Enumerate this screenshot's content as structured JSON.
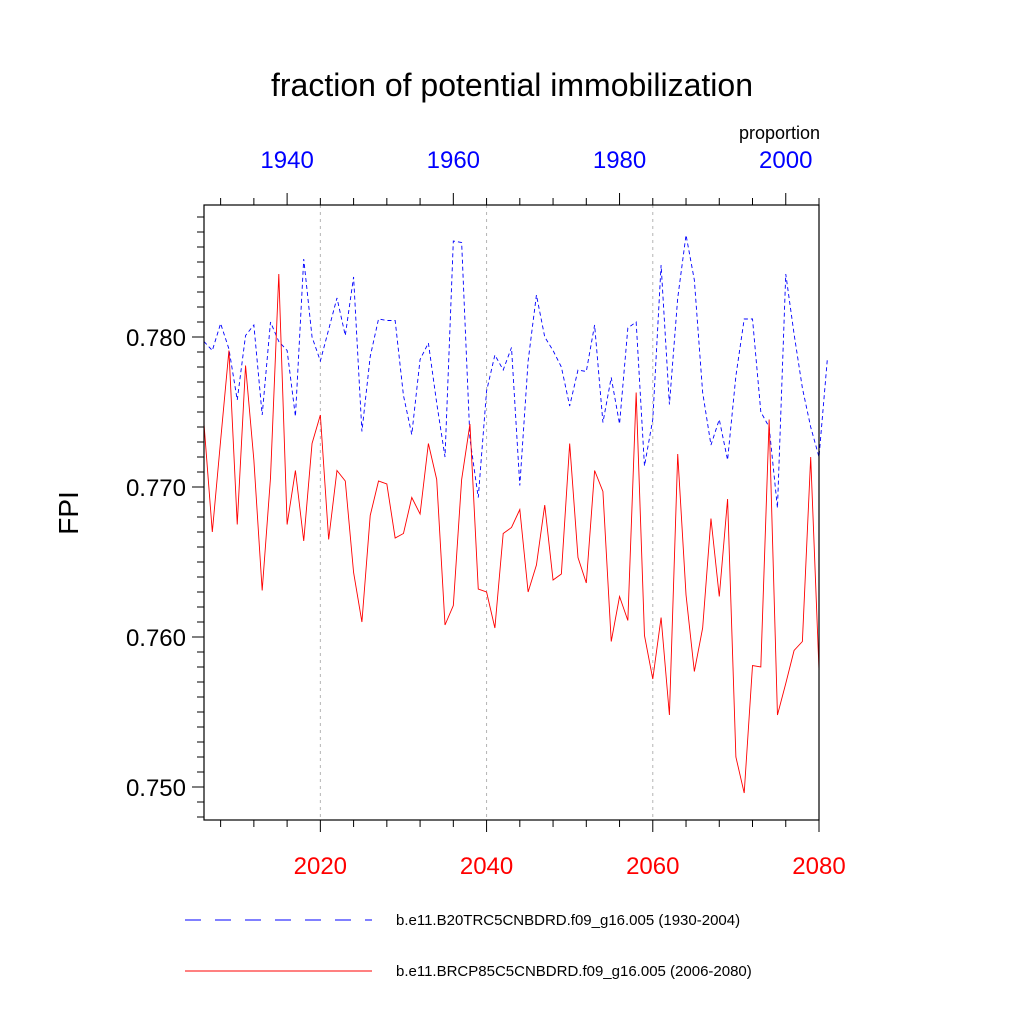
{
  "chart_data": {
    "type": "line",
    "title": "fraction of potential immobilization",
    "ylabel": "FPI",
    "units_label": "proportion",
    "ylim": [
      0.7478,
      0.7888
    ],
    "y_ticks": [
      {
        "value": 0.78,
        "label": "0.780"
      },
      {
        "value": 0.77,
        "label": "0.770"
      },
      {
        "value": 0.76,
        "label": "0.760"
      },
      {
        "value": 0.75,
        "label": "0.750"
      }
    ],
    "bottom_axis": {
      "range": [
        2006,
        2080
      ],
      "color": "#ff0000",
      "ticks": [
        {
          "value": 2020,
          "label": "2020"
        },
        {
          "value": 2040,
          "label": "2040"
        },
        {
          "value": 2060,
          "label": "2060"
        },
        {
          "value": 2080,
          "label": "2080"
        }
      ],
      "gridlines": [
        2020,
        2040,
        2060
      ]
    },
    "top_axis": {
      "range": [
        1930,
        2004
      ],
      "color": "#0000ff",
      "ticks": [
        {
          "value": 1940,
          "label": "1940"
        },
        {
          "value": 1960,
          "label": "1960"
        },
        {
          "value": 1980,
          "label": "1980"
        },
        {
          "value": 2000,
          "label": "2000"
        }
      ]
    },
    "series": [
      {
        "name": "b.e11.B20TRC5CNBDRD.f09_g16.005 (1930-2004)",
        "color": "#0000ff",
        "dash": "dashed",
        "x_start": 1930,
        "values": [
          0.7797,
          0.7791,
          0.7809,
          0.7792,
          0.7758,
          0.7801,
          0.7808,
          0.7748,
          0.781,
          0.7797,
          0.7791,
          0.7747,
          0.7852,
          0.78,
          0.7784,
          0.7805,
          0.7826,
          0.7801,
          0.784,
          0.7737,
          0.7787,
          0.7812,
          0.7811,
          0.7811,
          0.7761,
          0.7735,
          0.7785,
          0.7796,
          0.7756,
          0.772,
          0.7864,
          0.7863,
          0.7732,
          0.7693,
          0.7764,
          0.7788,
          0.7778,
          0.7793,
          0.7701,
          0.7784,
          0.7828,
          0.78,
          0.7791,
          0.778,
          0.7754,
          0.7778,
          0.7777,
          0.7808,
          0.7743,
          0.7773,
          0.7742,
          0.7806,
          0.781,
          0.7714,
          0.7745,
          0.7848,
          0.7755,
          0.7826,
          0.7868,
          0.7838,
          0.7763,
          0.7728,
          0.7745,
          0.7718,
          0.7774,
          0.7812,
          0.7812,
          0.775,
          0.774,
          0.7686,
          0.7842,
          0.7802,
          0.7766,
          0.774,
          0.772,
          0.7785
        ]
      },
      {
        "name": "b.e11.BRCP85C5CNBDRD.f09_g16.005 (2006-2080)",
        "color": "#ff0000",
        "dash": "solid",
        "x_start": 2006,
        "values": [
          0.7742,
          0.767,
          0.7731,
          0.7791,
          0.7675,
          0.7781,
          0.7718,
          0.7631,
          0.7706,
          0.7842,
          0.7675,
          0.7711,
          0.7664,
          0.7729,
          0.7748,
          0.7665,
          0.7711,
          0.7704,
          0.7643,
          0.761,
          0.7681,
          0.7704,
          0.7702,
          0.7666,
          0.7669,
          0.7693,
          0.7682,
          0.7729,
          0.7705,
          0.7608,
          0.7621,
          0.7705,
          0.7742,
          0.7632,
          0.763,
          0.7606,
          0.7669,
          0.7673,
          0.7685,
          0.763,
          0.7648,
          0.7688,
          0.7638,
          0.7642,
          0.7729,
          0.7653,
          0.7636,
          0.7711,
          0.7697,
          0.7597,
          0.7627,
          0.7611,
          0.7763,
          0.7601,
          0.7572,
          0.7613,
          0.7548,
          0.7722,
          0.7628,
          0.7577,
          0.7606,
          0.7679,
          0.7627,
          0.7692,
          0.752,
          0.7496,
          0.7581,
          0.758,
          0.7745,
          0.7548,
          0.7569,
          0.7591,
          0.7597,
          0.772,
          0.7578
        ]
      }
    ],
    "legend": [
      {
        "label": "b.e11.B20TRC5CNBDRD.f09_g16.005 (1930-2004)",
        "color": "#0000ff",
        "dash": "dashed"
      },
      {
        "label": "b.e11.BRCP85C5CNBDRD.f09_g16.005 (2006-2080)",
        "color": "#ff0000",
        "dash": "solid"
      }
    ]
  }
}
